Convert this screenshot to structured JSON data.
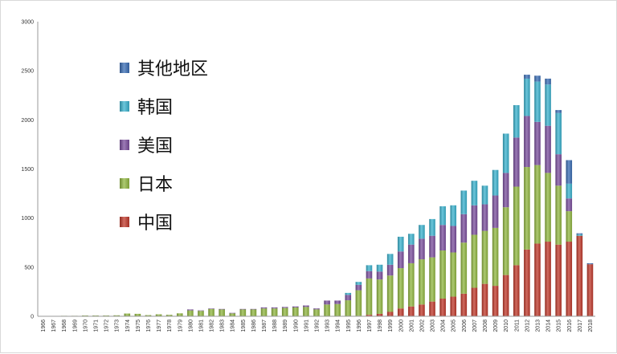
{
  "chart_data": {
    "type": "bar",
    "stacked": true,
    "title": "",
    "xlabel": "",
    "ylabel": "",
    "ylim": [
      0,
      3000
    ],
    "yticks": [
      0,
      500,
      1000,
      1500,
      2000,
      2500,
      3000
    ],
    "grid": false,
    "legend_position": "left, inside plot",
    "categories": [
      "1966",
      "1967",
      "1968",
      "1969",
      "1970",
      "1971",
      "1972",
      "1973",
      "1974",
      "1975",
      "1976",
      "1977",
      "1978",
      "1979",
      "1980",
      "1981",
      "1982",
      "1983",
      "1984",
      "1985",
      "1986",
      "1987",
      "1988",
      "1989",
      "1990",
      "1991",
      "1992",
      "1993",
      "1994",
      "1995",
      "1996",
      "1997",
      "1998",
      "1999",
      "2000",
      "2001",
      "2002",
      "2003",
      "2004",
      "2005",
      "2006",
      "2007",
      "2008",
      "2009",
      "2010",
      "2011",
      "2012",
      "2013",
      "2014",
      "2015",
      "2016",
      "2017",
      "2018"
    ],
    "series": [
      {
        "name": "中国",
        "color": "#c0392b",
        "values": [
          0,
          0,
          0,
          0,
          0,
          0,
          0,
          0,
          0,
          0,
          0,
          0,
          0,
          0,
          0,
          0,
          0,
          0,
          0,
          0,
          0,
          0,
          0,
          0,
          0,
          0,
          0,
          0,
          0,
          3,
          5,
          15,
          25,
          45,
          80,
          100,
          120,
          150,
          180,
          200,
          230,
          290,
          330,
          310,
          420,
          520,
          680,
          740,
          760,
          730,
          760,
          820,
          530
        ]
      },
      {
        "name": "日本",
        "color": "#92b841",
        "values": [
          3,
          3,
          5,
          5,
          8,
          8,
          8,
          10,
          28,
          25,
          12,
          20,
          15,
          30,
          60,
          55,
          75,
          70,
          30,
          70,
          70,
          80,
          80,
          85,
          90,
          95,
          70,
          120,
          125,
          160,
          260,
          370,
          350,
          370,
          410,
          440,
          460,
          450,
          490,
          450,
          520,
          540,
          540,
          590,
          690,
          800,
          840,
          800,
          700,
          600,
          310,
          0,
          0
        ]
      },
      {
        "name": "美国",
        "color": "#7b4f9e",
        "values": [
          0,
          0,
          0,
          0,
          0,
          0,
          0,
          0,
          0,
          0,
          0,
          0,
          0,
          0,
          10,
          5,
          5,
          5,
          5,
          5,
          5,
          10,
          10,
          10,
          10,
          15,
          10,
          40,
          35,
          55,
          55,
          75,
          80,
          110,
          170,
          190,
          210,
          220,
          260,
          270,
          290,
          300,
          270,
          330,
          350,
          500,
          520,
          440,
          480,
          320,
          130,
          0,
          0
        ]
      },
      {
        "name": "韩国",
        "color": "#3bb3cf",
        "values": [
          0,
          0,
          0,
          0,
          0,
          0,
          0,
          0,
          0,
          0,
          0,
          0,
          0,
          0,
          0,
          0,
          0,
          0,
          0,
          0,
          0,
          0,
          0,
          0,
          0,
          0,
          0,
          0,
          0,
          20,
          30,
          60,
          70,
          110,
          150,
          110,
          140,
          170,
          190,
          210,
          240,
          250,
          190,
          260,
          400,
          330,
          380,
          410,
          420,
          420,
          150,
          15,
          0
        ]
      },
      {
        "name": "其他地区",
        "color": "#3a6db5",
        "values": [
          0,
          0,
          0,
          0,
          0,
          0,
          0,
          0,
          0,
          0,
          0,
          0,
          0,
          0,
          0,
          0,
          0,
          0,
          0,
          0,
          0,
          0,
          0,
          0,
          0,
          0,
          0,
          0,
          0,
          0,
          0,
          0,
          0,
          0,
          0,
          0,
          0,
          0,
          0,
          0,
          0,
          0,
          0,
          0,
          0,
          0,
          40,
          60,
          60,
          30,
          240,
          10,
          10
        ]
      }
    ],
    "legend_order": [
      "其他地区",
      "韩国",
      "美国",
      "日本",
      "中国"
    ]
  }
}
